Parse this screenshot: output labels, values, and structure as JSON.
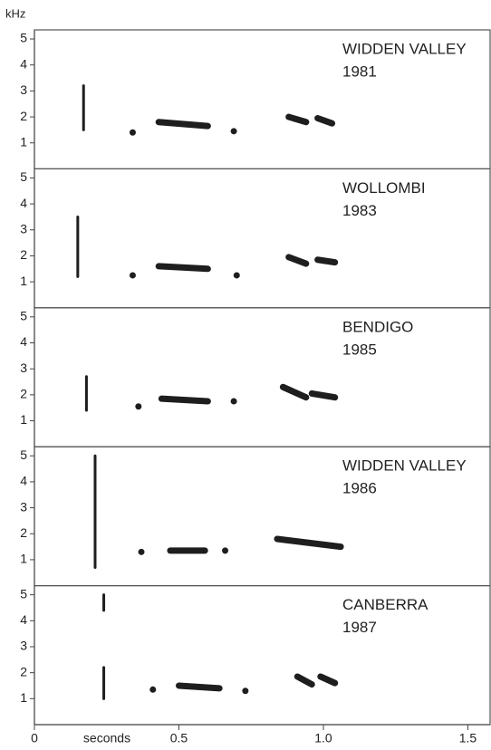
{
  "y_unit": "kHz",
  "x_axis": {
    "label": "seconds",
    "lim": [
      0,
      1.58
    ],
    "ticks": [
      0,
      0.5,
      {
        "value": 1,
        "label": "1.0"
      },
      1.5
    ]
  },
  "chart_data": [
    {
      "type": "spectrogram",
      "location": "WIDDEN VALLEY",
      "year": "1981",
      "ylim": [
        0,
        5.35
      ],
      "yticks": [
        1,
        2,
        3,
        4,
        5
      ],
      "notes": [
        {
          "t": [
            0.17,
            0.17
          ],
          "f": [
            1.5,
            3.2
          ]
        },
        {
          "t": [
            0.34,
            0.34
          ],
          "f": [
            1.4,
            1.4
          ]
        },
        {
          "t": [
            0.43,
            0.6
          ],
          "f": [
            1.8,
            1.65
          ]
        },
        {
          "t": [
            0.69,
            0.69
          ],
          "f": [
            1.45,
            1.45
          ]
        },
        {
          "t": [
            0.88,
            0.94
          ],
          "f": [
            2.0,
            1.8
          ]
        },
        {
          "t": [
            0.98,
            1.03
          ],
          "f": [
            1.95,
            1.75
          ]
        }
      ]
    },
    {
      "type": "spectrogram",
      "location": "WOLLOMBI",
      "year": "1983",
      "ylim": [
        0,
        5.35
      ],
      "yticks": [
        1,
        2,
        3,
        4,
        5
      ],
      "notes": [
        {
          "t": [
            0.15,
            0.15
          ],
          "f": [
            1.2,
            3.5
          ]
        },
        {
          "t": [
            0.34,
            0.34
          ],
          "f": [
            1.25,
            1.25
          ]
        },
        {
          "t": [
            0.43,
            0.6
          ],
          "f": [
            1.6,
            1.5
          ]
        },
        {
          "t": [
            0.7,
            0.7
          ],
          "f": [
            1.25,
            1.25
          ]
        },
        {
          "t": [
            0.88,
            0.94
          ],
          "f": [
            1.95,
            1.7
          ]
        },
        {
          "t": [
            0.98,
            1.04
          ],
          "f": [
            1.85,
            1.75
          ]
        }
      ]
    },
    {
      "type": "spectrogram",
      "location": "BENDIGO",
      "year": "1985",
      "ylim": [
        0,
        5.35
      ],
      "yticks": [
        1,
        2,
        3,
        4,
        5
      ],
      "notes": [
        {
          "t": [
            0.18,
            0.18
          ],
          "f": [
            1.4,
            2.7
          ]
        },
        {
          "t": [
            0.36,
            0.36
          ],
          "f": [
            1.55,
            1.55
          ]
        },
        {
          "t": [
            0.44,
            0.6
          ],
          "f": [
            1.85,
            1.75
          ]
        },
        {
          "t": [
            0.69,
            0.69
          ],
          "f": [
            1.75,
            1.75
          ]
        },
        {
          "t": [
            0.86,
            0.94
          ],
          "f": [
            2.3,
            1.9
          ]
        },
        {
          "t": [
            0.96,
            1.04
          ],
          "f": [
            2.05,
            1.9
          ]
        }
      ]
    },
    {
      "type": "spectrogram",
      "location": "WIDDEN VALLEY",
      "year": "1986",
      "ylim": [
        0,
        5.35
      ],
      "yticks": [
        1,
        2,
        3,
        4,
        5
      ],
      "notes": [
        {
          "t": [
            0.21,
            0.21
          ],
          "f": [
            0.7,
            5.0
          ]
        },
        {
          "t": [
            0.37,
            0.37
          ],
          "f": [
            1.3,
            1.3
          ]
        },
        {
          "t": [
            0.47,
            0.59
          ],
          "f": [
            1.35,
            1.35
          ]
        },
        {
          "t": [
            0.66,
            0.66
          ],
          "f": [
            1.35,
            1.35
          ]
        },
        {
          "t": [
            0.84,
            1.06
          ],
          "f": [
            1.8,
            1.5
          ]
        }
      ]
    },
    {
      "type": "spectrogram",
      "location": "CANBERRA",
      "year": "1987",
      "ylim": [
        0,
        5.35
      ],
      "yticks": [
        1,
        2,
        3,
        4,
        5
      ],
      "notes": [
        {
          "t": [
            0.24,
            0.24
          ],
          "f": [
            4.4,
            5.0
          ]
        },
        {
          "t": [
            0.24,
            0.24
          ],
          "f": [
            1.0,
            2.2
          ]
        },
        {
          "t": [
            0.41,
            0.41
          ],
          "f": [
            1.35,
            1.35
          ]
        },
        {
          "t": [
            0.5,
            0.64
          ],
          "f": [
            1.5,
            1.4
          ]
        },
        {
          "t": [
            0.73,
            0.73
          ],
          "f": [
            1.3,
            1.3
          ]
        },
        {
          "t": [
            0.91,
            0.96
          ],
          "f": [
            1.85,
            1.55
          ]
        },
        {
          "t": [
            0.99,
            1.04
          ],
          "f": [
            1.85,
            1.6
          ]
        }
      ]
    }
  ]
}
